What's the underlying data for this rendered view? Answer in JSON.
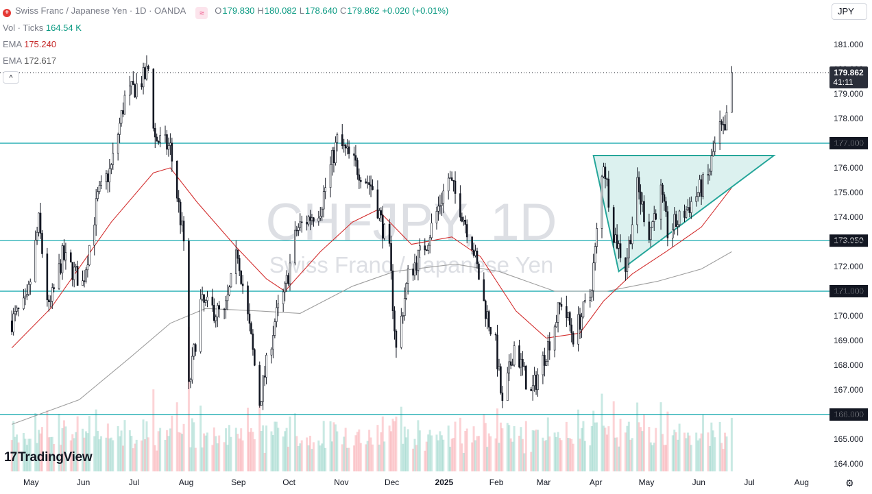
{
  "header": {
    "instrument": "Swiss Franc / Japanese Yen · 1D · OANDA",
    "open_label": "O",
    "open": "179.830",
    "high_label": "H",
    "high": "180.082",
    "low_label": "L",
    "low": "178.640",
    "close_label": "C",
    "close": "179.862",
    "change": "+0.020 (+0.01%)",
    "currency_button": "JPY"
  },
  "indicators": {
    "volume_label": "Vol · Ticks",
    "volume_value": "164.54 K",
    "ema1_label": "EMA",
    "ema1_value": "175.240",
    "ema2_label": "EMA",
    "ema2_value": "172.617",
    "collapse_label": "^"
  },
  "watermark": {
    "symbol": "CHFJPY, 1D",
    "name": "Swiss Franc / Japanese Yen"
  },
  "branding": {
    "logo_text": "TradingView",
    "logo_mark": "17"
  },
  "colors": {
    "up": "#089981",
    "down": "#f23645",
    "ema_fast": "#d32f2f",
    "ema_slow": "#9e9e9e",
    "level_line": "#00a0a8",
    "triangle_fill": "#b2dfdb",
    "triangle_stroke": "#26a69a"
  },
  "chart_data": {
    "type": "candlestick",
    "price_axis": {
      "min": 164.0,
      "max": 181.0,
      "ticks": [
        "181.000",
        "180.000",
        "179.000",
        "178.000",
        "177.000",
        "176.000",
        "175.000",
        "174.000",
        "173.000",
        "172.000",
        "171.000",
        "170.000",
        "169.000",
        "168.000",
        "167.000",
        "166.000",
        "165.000",
        "164.000"
      ]
    },
    "time_axis": {
      "labels": [
        "May",
        "Jun",
        "Jul",
        "Aug",
        "Sep",
        "Oct",
        "Nov",
        "Dec",
        "2025",
        "Feb",
        "Mar",
        "Apr",
        "May",
        "Jun",
        "Jul",
        "Aug"
      ]
    },
    "last_price": "179.862",
    "countdown": "41:11",
    "horizontal_levels": [
      "177.000",
      "173.050",
      "171.000",
      "166.000"
    ],
    "price_path": [
      [
        "2024-04-22",
        169.8
      ],
      [
        "2024-05-01",
        170.5
      ],
      [
        "2024-05-08",
        173.8
      ],
      [
        "2024-05-14",
        170.2
      ],
      [
        "2024-05-22",
        172.4
      ],
      [
        "2024-06-03",
        171.3
      ],
      [
        "2024-06-12",
        174.8
      ],
      [
        "2024-06-20",
        176.0
      ],
      [
        "2024-06-28",
        178.8
      ],
      [
        "2024-07-10",
        179.7
      ],
      [
        "2024-07-12",
        180.0
      ],
      [
        "2024-07-16",
        177.2
      ],
      [
        "2024-07-25",
        176.8
      ],
      [
        "2024-08-02",
        173.0
      ],
      [
        "2024-08-05",
        167.0
      ],
      [
        "2024-08-12",
        170.5
      ],
      [
        "2024-08-26",
        170.0
      ],
      [
        "2024-09-03",
        172.6
      ],
      [
        "2024-09-11",
        169.0
      ],
      [
        "2024-09-16",
        166.5
      ],
      [
        "2024-09-25",
        169.8
      ],
      [
        "2024-10-01",
        171.0
      ],
      [
        "2024-10-08",
        173.5
      ],
      [
        "2024-10-22",
        174.4
      ],
      [
        "2024-11-01",
        177.1
      ],
      [
        "2024-11-14",
        175.9
      ],
      [
        "2024-11-22",
        175.2
      ],
      [
        "2024-12-02",
        172.5
      ],
      [
        "2024-12-06",
        168.6
      ],
      [
        "2024-12-13",
        171.6
      ],
      [
        "2024-12-24",
        173.0
      ],
      [
        "2025-01-06",
        175.6
      ],
      [
        "2025-01-13",
        174.4
      ],
      [
        "2025-01-20",
        173.0
      ],
      [
        "2025-01-27",
        170.5
      ],
      [
        "2025-02-03",
        168.8
      ],
      [
        "2025-02-07",
        166.3
      ],
      [
        "2025-02-14",
        168.8
      ],
      [
        "2025-02-24",
        166.8
      ],
      [
        "2025-03-06",
        168.8
      ],
      [
        "2025-03-14",
        170.6
      ],
      [
        "2025-03-21",
        169.2
      ],
      [
        "2025-03-31",
        170.8
      ],
      [
        "2025-04-03",
        172.6
      ],
      [
        "2025-04-08",
        176.3
      ],
      [
        "2025-04-14",
        173.4
      ],
      [
        "2025-04-21",
        172.0
      ],
      [
        "2025-04-28",
        175.2
      ],
      [
        "2025-05-05",
        173.4
      ],
      [
        "2025-05-12",
        175.0
      ],
      [
        "2025-05-16",
        173.4
      ],
      [
        "2025-05-23",
        173.9
      ],
      [
        "2025-06-02",
        174.9
      ],
      [
        "2025-06-09",
        175.6
      ],
      [
        "2025-06-12",
        176.6
      ],
      [
        "2025-06-16",
        177.6
      ],
      [
        "2025-06-19",
        177.3
      ],
      [
        "2025-06-23",
        179.86
      ]
    ],
    "ema_fast_path": [
      [
        "2024-04-22",
        168.7
      ],
      [
        "2024-05-15",
        170.3
      ],
      [
        "2024-06-20",
        173.8
      ],
      [
        "2024-07-15",
        175.8
      ],
      [
        "2024-07-25",
        176.0
      ],
      [
        "2024-08-10",
        174.6
      ],
      [
        "2024-09-02",
        172.8
      ],
      [
        "2024-09-20",
        171.5
      ],
      [
        "2024-10-01",
        171.0
      ],
      [
        "2024-10-22",
        172.6
      ],
      [
        "2024-11-10",
        173.8
      ],
      [
        "2024-11-25",
        174.3
      ],
      [
        "2024-12-15",
        172.9
      ],
      [
        "2025-01-08",
        173.2
      ],
      [
        "2025-01-25",
        172.4
      ],
      [
        "2025-02-15",
        170.2
      ],
      [
        "2025-03-05",
        169.1
      ],
      [
        "2025-03-25",
        169.3
      ],
      [
        "2025-04-08",
        170.6
      ],
      [
        "2025-04-25",
        171.7
      ],
      [
        "2025-05-15",
        172.6
      ],
      [
        "2025-06-05",
        173.6
      ],
      [
        "2025-06-23",
        175.2
      ]
    ],
    "ema_slow_path": [
      [
        "2024-04-22",
        165.6
      ],
      [
        "2024-06-01",
        166.6
      ],
      [
        "2024-07-01",
        168.3
      ],
      [
        "2024-07-25",
        169.7
      ],
      [
        "2024-08-15",
        170.3
      ],
      [
        "2024-09-15",
        170.2
      ],
      [
        "2024-10-10",
        170.1
      ],
      [
        "2024-11-10",
        171.2
      ],
      [
        "2024-12-05",
        171.8
      ],
      [
        "2025-01-10",
        172.1
      ],
      [
        "2025-02-05",
        171.8
      ],
      [
        "2025-03-10",
        171.0
      ],
      [
        "2025-04-10",
        171.0
      ],
      [
        "2025-05-10",
        171.4
      ],
      [
        "2025-06-05",
        171.9
      ],
      [
        "2025-06-23",
        172.6
      ]
    ],
    "triangle_pattern": [
      [
        "2025-04-02",
        176.5
      ],
      [
        "2025-07-18",
        176.5
      ],
      [
        "2025-04-17",
        171.8
      ]
    ]
  }
}
